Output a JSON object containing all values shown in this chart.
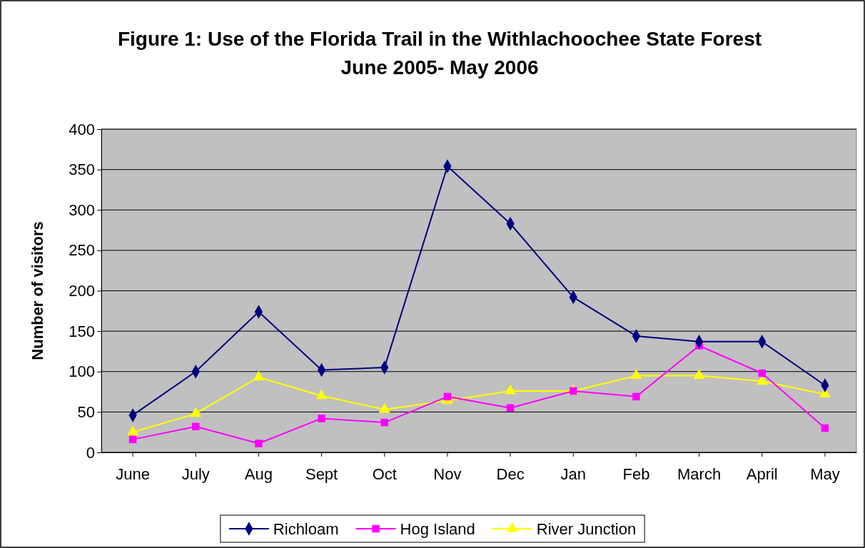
{
  "chart_data": {
    "type": "line",
    "title": "Figure 1: Use of the Florida Trail in the Withlachoochee State Forest June 2005- May 2006",
    "ylabel": "Number of visitors",
    "categories": [
      "June",
      "July",
      "Aug",
      "Sept",
      "Oct",
      "Nov",
      "Dec",
      "Jan",
      "Feb",
      "March",
      "April",
      "May"
    ],
    "series": [
      {
        "name": "Richloam",
        "color": "#000080",
        "marker": "diamond",
        "values": [
          46,
          100,
          174,
          102,
          105,
          354,
          283,
          192,
          144,
          137,
          137,
          83
        ]
      },
      {
        "name": "Hog Island",
        "color": "#ff00ff",
        "marker": "square",
        "values": [
          16,
          32,
          11,
          42,
          37,
          69,
          55,
          76,
          69,
          132,
          98,
          30
        ]
      },
      {
        "name": "River Junction",
        "color": "#ffff00",
        "marker": "triangle",
        "values": [
          25,
          48,
          93,
          70,
          53,
          64,
          76,
          76,
          95,
          95,
          88,
          72
        ]
      }
    ],
    "ylim": [
      0,
      400
    ],
    "yticks": [
      0,
      50,
      100,
      150,
      200,
      250,
      300,
      350,
      400
    ],
    "grid": "y",
    "legend": "bottom"
  }
}
